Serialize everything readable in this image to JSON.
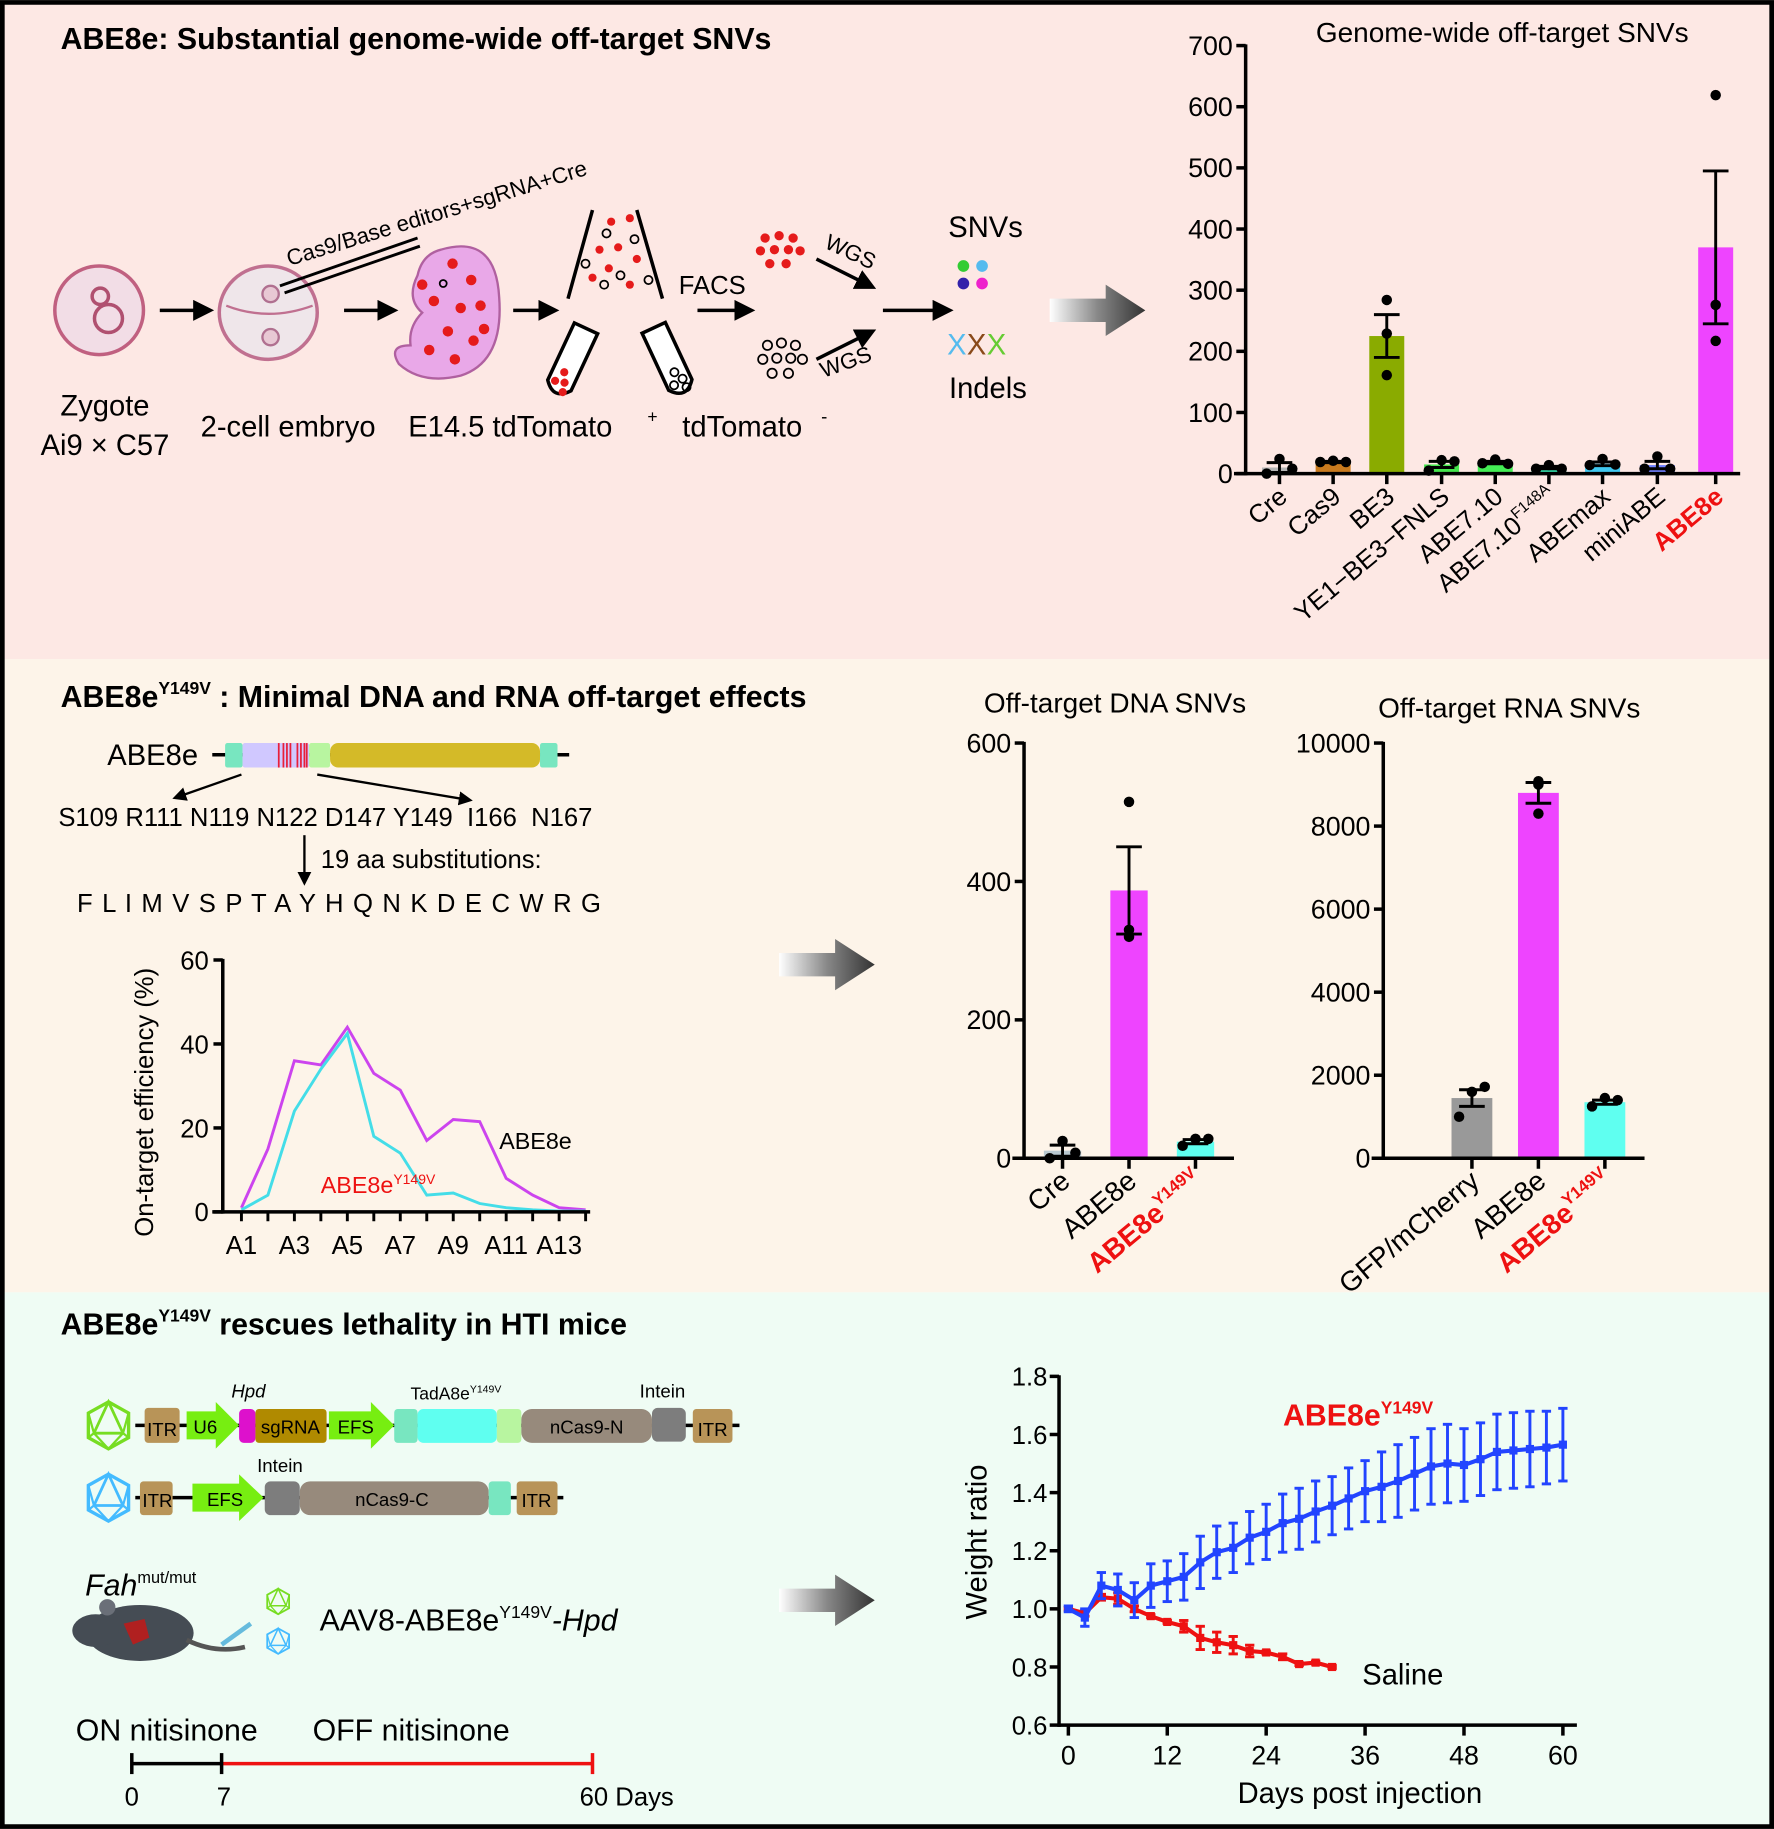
{
  "panel1": {
    "title": "ABE8e: Substantial genome-wide off-target SNVs",
    "injection_label": "Cas9/Base editors+sgRNA+Cre",
    "zygote": "Zygote",
    "strain": "Ai9 × C57",
    "two_cell": "2-cell embryo",
    "e145": "E14.5 tdTomato",
    "plus": "+",
    "tdtomato_neg": "tdTomato",
    "minus": "-",
    "facs": "FACS",
    "wgs1": "WGS",
    "wgs2": "WGS",
    "snvs": "SNVs",
    "x1": "X",
    "x2": "X",
    "x3": "X",
    "indels": "Indels"
  },
  "panel2": {
    "title_main": "ABE8e",
    "title_sup": "Y149V",
    "title_rest": " : Minimal DNA and RNA off-target effects",
    "gene_label": "ABE8e",
    "residues": "S109 R111 N119 N122 D147 Y149  I166  N167",
    "substitutions": "19 aa substitutions:",
    "amino_acids": "F L I M V S P T A Y H Q N K D E C W R G"
  },
  "panel3": {
    "title_main": "ABE8e",
    "title_sup": "Y149V",
    "title_rest": " rescues lethality in HTI mice",
    "itr": "ITR",
    "u6": "U6",
    "sgrna": "sgRNA",
    "efs": "EFS",
    "ncas9n": "nCas9-N",
    "ncas9c": "nCas9-C",
    "hpd": "Hpd",
    "tada": "TadA8e",
    "tada_sup": "Y149V",
    "intein": "Intein",
    "fah": "Fah",
    "fah_sup": "mut/mut",
    "aav_main": "AAV8-ABE8e",
    "aav_sup": "Y149V",
    "aav_tail": "-Hpd",
    "on": "ON nitisinone",
    "off": "OFF nitisinone",
    "t0": "0",
    "t7": "7",
    "t60": "60 Days"
  },
  "colors": {
    "panel1_bg": "#fde8e4",
    "panel2_bg": "#fdf4e9",
    "panel3_bg": "#effcf4",
    "red": "#ee1111",
    "blue": "#2244ff"
  },
  "chart_data": [
    {
      "type": "bar",
      "title": "Genome-wide off-target SNVs",
      "ylim": [
        0,
        700
      ],
      "yticks": [
        0,
        100,
        200,
        300,
        400,
        500,
        600,
        700
      ],
      "categories": [
        {
          "label": "Cre",
          "sup": "",
          "value": 10,
          "sem": 8,
          "points": [
            0,
            24,
            8
          ],
          "color": "#b4b4b4"
        },
        {
          "label": "Cas9",
          "sup": "",
          "value": 19,
          "sem": 1,
          "points": [
            19,
            21,
            19
          ],
          "color": "#c87a1e"
        },
        {
          "label": "BE3",
          "sup": "",
          "value": 225,
          "sem": 35,
          "points": [
            161,
            229,
            284
          ],
          "color": "#8aab00"
        },
        {
          "label": "YE1−BE3−FNLS",
          "sup": "",
          "value": 15,
          "sem": 5,
          "points": [
            5,
            22,
            20
          ],
          "color": "#44e44c"
        },
        {
          "label": "ABE7.10",
          "sup": "",
          "value": 18,
          "sem": 2,
          "points": [
            17,
            23,
            16
          ],
          "color": "#44ee55"
        },
        {
          "label": "ABE7.10",
          "sup": "F148A",
          "value": 10,
          "sem": 2,
          "points": [
            8,
            14,
            8
          ],
          "color": "#33ddaa"
        },
        {
          "label": "ABEmax",
          "sup": "",
          "value": 16,
          "sem": 3,
          "points": [
            14,
            24,
            15
          ],
          "color": "#40c8f0"
        },
        {
          "label": "miniABE",
          "sup": "",
          "value": 14,
          "sem": 6,
          "points": [
            8,
            28,
            8
          ],
          "color": "#7080ff"
        },
        {
          "label": "ABE8e",
          "sup": "",
          "value": 370,
          "sem": 125,
          "points": [
            217,
            276,
            619
          ],
          "color": "#ee44ff",
          "highlight": true
        }
      ]
    },
    {
      "type": "line",
      "ylabel": "On-target efficiency (%)",
      "ylim": [
        0,
        60
      ],
      "yticks": [
        0,
        20,
        40,
        60
      ],
      "x": [
        "A1",
        "A2",
        "A3",
        "A4",
        "A5",
        "A6",
        "A7",
        "A8",
        "A9",
        "A10",
        "A11",
        "A12",
        "A13",
        "A14"
      ],
      "xtick_labels": [
        "A1",
        "A3",
        "A5",
        "A7",
        "A9",
        "A11",
        "A13"
      ],
      "series": [
        {
          "name": "ABE8e",
          "sup": "",
          "color": "#cc44ee",
          "values": [
            1,
            15,
            36,
            35,
            44,
            33,
            29,
            17,
            22,
            21.5,
            8,
            4,
            1,
            0.5
          ]
        },
        {
          "name": "ABE8e",
          "sup": "Y149V",
          "color": "#44dde8",
          "values": [
            0.5,
            4,
            24,
            34,
            42.5,
            18,
            14,
            4,
            4.5,
            2,
            1,
            0.5,
            0.2,
            0.2
          ]
        }
      ]
    },
    {
      "type": "bar",
      "title": "Off-target DNA SNVs",
      "ylim": [
        0,
        600
      ],
      "yticks": [
        0,
        200,
        400,
        600
      ],
      "categories": [
        {
          "label": "Cre",
          "sup": "",
          "value": 11,
          "sem": 8,
          "points": [
            0,
            25,
            8
          ],
          "color": "#b8c8d0"
        },
        {
          "label": "ABE8e",
          "sup": "",
          "value": 387,
          "sem": 63,
          "points": [
            515,
            330,
            320
          ],
          "color": "#ee44ff"
        },
        {
          "label": "ABE8e",
          "sup": "Y149V",
          "value": 24,
          "sem": 3,
          "points": [
            18,
            28,
            28
          ],
          "color": "#5ffff0",
          "highlight": true
        }
      ]
    },
    {
      "type": "bar",
      "title": "Off-target RNA SNVs",
      "ylim": [
        0,
        10000
      ],
      "yticks": [
        0,
        2000,
        4000,
        6000,
        8000,
        10000
      ],
      "categories": [
        {
          "label": "GFP/mCherry",
          "sup": "",
          "value": 1450,
          "sem": 200,
          "points": [
            1000,
            1600,
            1720
          ],
          "color": "#999999"
        },
        {
          "label": "ABE8e",
          "sup": "",
          "value": 8800,
          "sem": 250,
          "points": [
            8300,
            9000,
            9080
          ],
          "color": "#ee44ff"
        },
        {
          "label": "ABE8e",
          "sup": "Y149V",
          "value": 1350,
          "sem": 50,
          "points": [
            1250,
            1450,
            1400
          ],
          "color": "#5ffff0",
          "highlight": true
        }
      ]
    },
    {
      "type": "line",
      "xlabel": "Days post injection",
      "ylabel": "Weight ratio",
      "xlim": [
        0,
        60
      ],
      "ylim": [
        0.6,
        1.8
      ],
      "xticks": [
        0,
        12,
        24,
        36,
        48,
        60
      ],
      "yticks": [
        "0.6",
        "0.8",
        "1.0",
        "1.2",
        "1.4",
        "1.6",
        "1.8"
      ],
      "series": [
        {
          "name": "ABE8e",
          "sup": "Y149V",
          "color": "#2244ff",
          "x": [
            0,
            2,
            4,
            6,
            8,
            10,
            12,
            14,
            16,
            18,
            20,
            22,
            24,
            26,
            28,
            30,
            32,
            34,
            36,
            38,
            40,
            42,
            44,
            46,
            48,
            50,
            52,
            54,
            56,
            58,
            60
          ],
          "values": [
            1.0,
            0.97,
            1.08,
            1.065,
            1.03,
            1.08,
            1.095,
            1.11,
            1.16,
            1.195,
            1.21,
            1.245,
            1.265,
            1.295,
            1.31,
            1.335,
            1.355,
            1.38,
            1.405,
            1.42,
            1.44,
            1.465,
            1.49,
            1.5,
            1.495,
            1.515,
            1.54,
            1.545,
            1.55,
            1.555,
            1.565
          ],
          "errors": [
            0.01,
            0.03,
            0.045,
            0.055,
            0.06,
            0.075,
            0.07,
            0.08,
            0.09,
            0.09,
            0.085,
            0.09,
            0.095,
            0.1,
            0.105,
            0.105,
            0.1,
            0.105,
            0.105,
            0.12,
            0.125,
            0.125,
            0.13,
            0.135,
            0.125,
            0.125,
            0.13,
            0.13,
            0.13,
            0.125,
            0.125
          ]
        },
        {
          "name": "Saline",
          "sup": "",
          "color": "#ee1111",
          "x": [
            0,
            2,
            4,
            6,
            8,
            10,
            12,
            14,
            16,
            18,
            20,
            22,
            24,
            26,
            28,
            30,
            32
          ],
          "values": [
            1.0,
            0.985,
            1.04,
            1.035,
            1.0,
            0.975,
            0.955,
            0.94,
            0.9,
            0.885,
            0.875,
            0.855,
            0.85,
            0.835,
            0.81,
            0.815,
            0.8
          ],
          "errors": [
            0.005,
            0.01,
            0.01,
            0.02,
            0.01,
            0.005,
            0.005,
            0.02,
            0.04,
            0.035,
            0.03,
            0.02,
            0.005,
            0.01,
            0.005,
            0.005,
            0.005
          ]
        }
      ]
    }
  ]
}
